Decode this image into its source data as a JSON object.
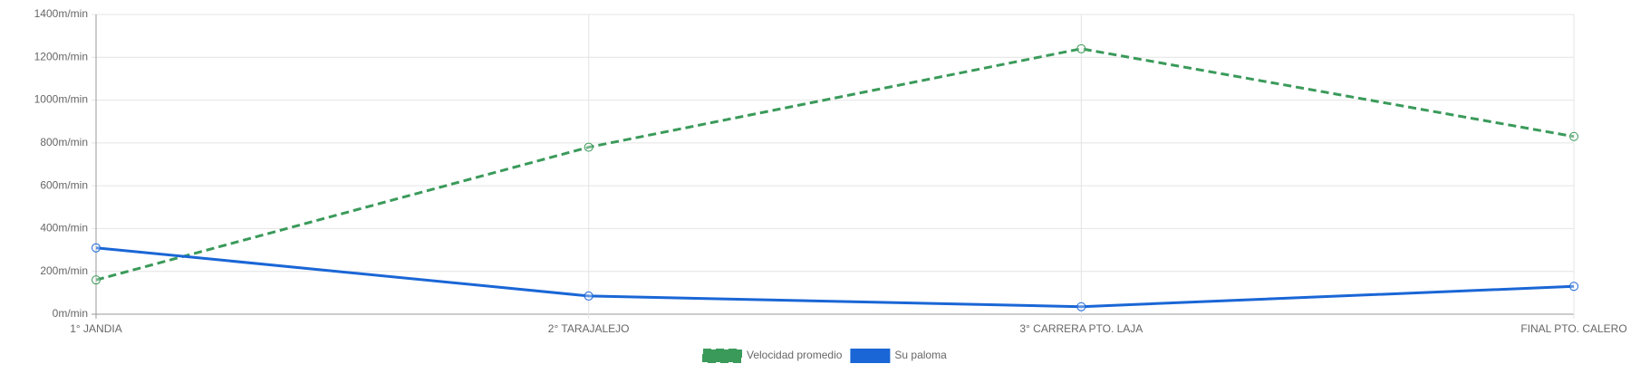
{
  "chart_data": {
    "type": "line",
    "categories": [
      "1° JANDIA",
      "2° TARAJALEJO",
      "3° CARRERA PTO. LAJA",
      "FINAL PTO. CALERO"
    ],
    "series": [
      {
        "name": "Velocidad promedio",
        "color": "#3a9a5a",
        "dashed": true,
        "values": [
          160,
          780,
          1240,
          830
        ]
      },
      {
        "name": "Su paloma",
        "color": "#1a66d6",
        "dashed": false,
        "values": [
          310,
          85,
          35,
          130
        ]
      }
    ],
    "ylim": [
      0,
      1400
    ],
    "yticks": [
      {
        "value": 0,
        "label": "0m/min"
      },
      {
        "value": 200,
        "label": "200m/min"
      },
      {
        "value": 400,
        "label": "400m/min"
      },
      {
        "value": 600,
        "label": "600m/min"
      },
      {
        "value": 800,
        "label": "800m/min"
      },
      {
        "value": 1000,
        "label": "1000m/min"
      },
      {
        "value": 1200,
        "label": "1200m/min"
      },
      {
        "value": 1400,
        "label": "1400m/min"
      }
    ],
    "grid": true,
    "legend": "bottom"
  }
}
